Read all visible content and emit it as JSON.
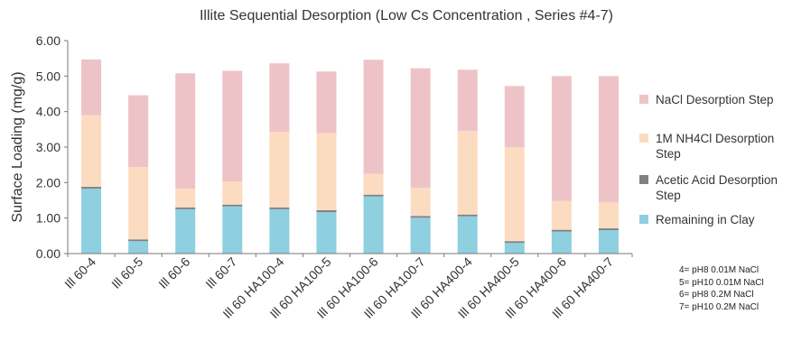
{
  "chart_data": {
    "type": "bar",
    "stacked": true,
    "title": "Illite Sequential Desorption (Low Cs Concentration , Series #4-7)",
    "xlabel": "",
    "ylabel": "Surface Loading (mg/g)",
    "ylim": [
      0,
      6
    ],
    "yticks": [
      "0.00",
      "1.00",
      "2.00",
      "3.00",
      "4.00",
      "5.00",
      "6.00"
    ],
    "grid": false,
    "legend_position": "right",
    "categories": [
      "Ill 60-4",
      "Ill 60-5",
      "Ill 60-6",
      "Ill 60-7",
      "Ill 60 HA100-4",
      "Ill 60 HA100-5",
      "Ill 60 HA100-6",
      "Ill 60 HA100-7",
      "Ill 60 HA400-4",
      "Ill 60 HA400-5",
      "Ill 60 HA400-6",
      "Ill 60 HA400-7"
    ],
    "series": [
      {
        "name": "Remaining in Clay",
        "color": "#8ecfe0",
        "values": [
          1.83,
          0.35,
          1.25,
          1.33,
          1.25,
          1.17,
          1.61,
          1.01,
          1.05,
          0.3,
          0.62,
          0.66
        ]
      },
      {
        "name": "Acetic Acid Desorption Step",
        "color": "#808080",
        "values": [
          0.05,
          0.05,
          0.05,
          0.05,
          0.05,
          0.05,
          0.05,
          0.05,
          0.05,
          0.05,
          0.05,
          0.05
        ]
      },
      {
        "name": "1M NH4Cl Desorption Step",
        "color": "#fcdcc1",
        "values": [
          2.02,
          2.04,
          0.53,
          0.65,
          2.13,
          2.17,
          0.59,
          0.79,
          2.35,
          2.65,
          0.81,
          0.74
        ]
      },
      {
        "name": "NaCl Desorption Step",
        "color": "#eec3c8",
        "values": [
          1.57,
          2.02,
          3.25,
          3.12,
          1.93,
          1.74,
          3.21,
          3.37,
          1.73,
          1.72,
          3.52,
          3.55
        ]
      }
    ],
    "legend_order": [
      "NaCl Desorption Step",
      "1M NH4Cl Desorption Step",
      "Acetic Acid Desorption Step",
      "Remaining in Clay"
    ]
  },
  "notes": [
    "4= pH8 0.01M NaCl",
    "5= pH10 0.01M NaCl",
    "6= pH8 0.2M NaCl",
    "7= pH10 0.2M NaCl"
  ]
}
